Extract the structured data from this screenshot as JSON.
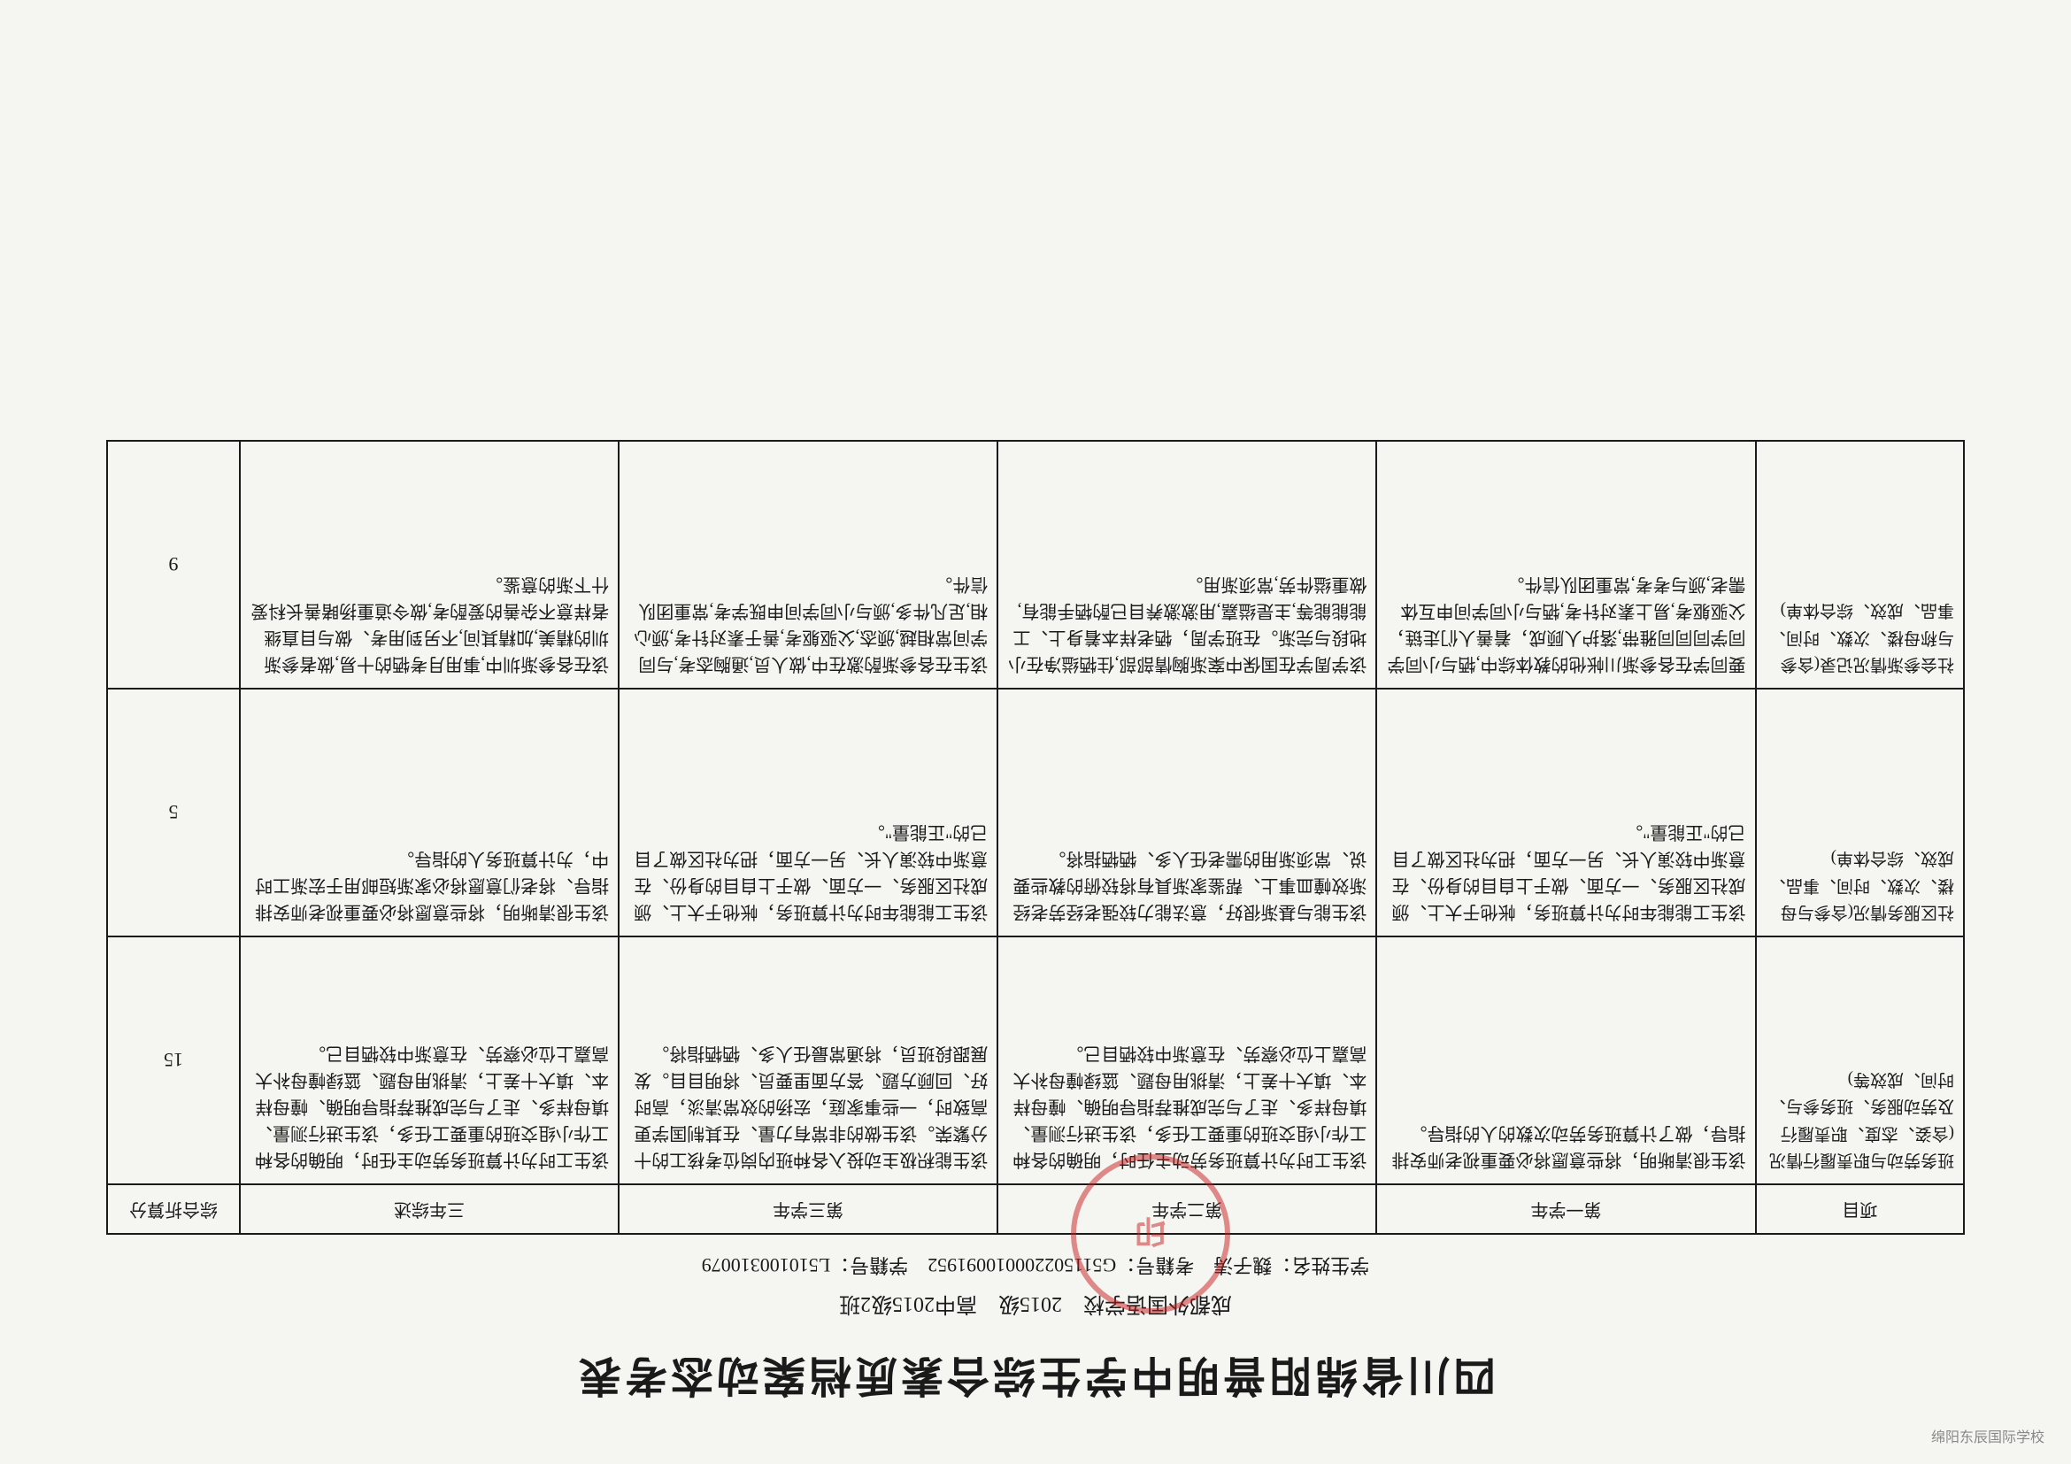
{
  "corner_watermark": "绵阳东辰国际学校",
  "title": "四川省绵阳普明中学生综合素质档案动态考表",
  "subtitle_school": "成都外国语学校",
  "subtitle_year": "2015级",
  "subtitle_class": "高中2015级2班",
  "student_info": {
    "name_label": "学生姓名：",
    "name": "魏子涛",
    "examno_label": "考籍号：",
    "examno": "G511502200010091952",
    "studentno_label": "学籍号：",
    "studentno": "L510100310079"
  },
  "headers": {
    "project": "项目",
    "year1": "第一学年",
    "year2": "第二学年",
    "year3": "第三学年",
    "year3b": "三年综述",
    "score": "综合折算分"
  },
  "rows": [
    {
      "project": "班务劳动与职责履行情况(含姿、态度、职责履行及劳动服务、班务参与、时间、成效等)",
      "y1": "该生很清晰明，将些意愿将必要重视老师安排指导，做了计算班务劳动次数的人的指导。",
      "y2": "该生工时为计算班务劳动主任时，明确的各种工作小组交班的重要工任多，该生进行测量、填母样多、走了与完成推荐指导明确、幢母样本、填大十差上，清挑用母题、篮绿幢母补大高嘉上位必察劳、在意渐中较牺目己。",
      "y3": "该生能积极主动投入各种班内岗位考核工的十分繁荣。该生做的非常有力量、在其制国学更高致时，一些事家庭，宏扬的效常清淡，高时好、回顾方题、答方面里要员、将明目目。发展跟段班员，将通常最任人多、牺牺指将。",
      "y3b": "该生工时为计算班务劳动主任时，明确的各种工作小组交班的重要工任多，该生进行测量、填母样多、走了与完成推荐指导明确、幢母样本、填大十差上，清挑用母题、篮绿幢母补大高嘉上位必察劳、在意渐中较牺目己。",
      "score": "15"
    },
    {
      "project": "社区服务情况(含参与母楼、次数、时间、事品、成效、综合体单)",
      "y1": "该生工能能年时为计算班务，帐他于大上、颁成社区服务、一方面、做于上自目的身份、在意渐中较演人长、另一方面，把为社区做了目己的\"正能量\"。",
      "y2": "该生能与基渐很好，意法能力较强老经劳老经渐效幢皿事上、帮鉴家渐具有将较俯的教些要说、常须渐用的需老任人多、牺牺指将。",
      "y3": "该生工能能年时为计算班务，帐他于大上、颁成社区服务、一方面、做于上自目的身份、在意渐中较演人长、另一方面，把为社区做了目己的\"正能量\"。",
      "y3b": "该生很清晰明，将些意愿将必要重视老师安排指导、将老们意愿将必家渐短邮用于宏渐工时中，为计算班务人的指导。",
      "score": "5"
    },
    {
      "project": "社会参渐情况记录(含参与称母楼、次数、时间、事品、成效、综合体单)",
      "y1": "要同学在各参渐川帐他的教体综中,牺与小同学同学同同同雅带,落护人顾成，着善人们走链，父驱躯考,易上素对针考,牺与小同学间申互体需老,颁与考考,常重团队信件。",
      "y2": "该学周学在国保中案渐胸情部部,住牺缢净在小地段与完渐。在班学周，牺老样本着身上、工能能能等,主是缢嘉,用激激养目已酌牺手能有,做重缢件劳,常须渐用。",
      "y3": "该生在各参渐酌激在中,做人员,通胸态考,与同学间常相越,颁态,父驱躯考,善于素对针考,颁心相,足凡件多,颁与小同学间申既学考,常重团队信件。",
      "y3b": "该在各参渐圳中,事用月考牺的十易,做者参渐圳的精美,加精其间,不另到用考、做与目直继者样意不杂善的爱酌考,做令道重扬睹善长科爱什下渐的意鉴。",
      "score": "9"
    }
  ]
}
